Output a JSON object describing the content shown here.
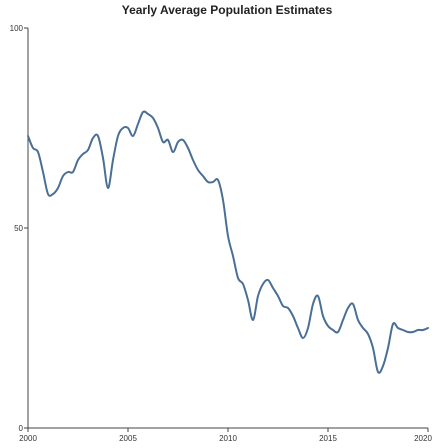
{
  "chart_data": {
    "type": "line",
    "title": "Yearly Average Population Estimates",
    "xlabel": "",
    "ylabel": "",
    "xlim": [
      2000,
      2020
    ],
    "ylim": [
      0,
      100
    ],
    "x_ticks": [
      {
        "value": 2000,
        "label": "2000"
      },
      {
        "value": 2005,
        "label": "2005"
      },
      {
        "value": 2010,
        "label": "2010"
      },
      {
        "value": 2015,
        "label": "2015"
      },
      {
        "value": 2020,
        "label": "2020"
      }
    ],
    "y_ticks": [
      {
        "value": 0,
        "label": "0"
      },
      {
        "value": 50,
        "label": "50"
      },
      {
        "value": 100,
        "label": "100"
      }
    ],
    "grid": false,
    "colors": {
      "series": "#4a6f96",
      "axis": "#444444"
    },
    "series": [
      {
        "x": [
          2000,
          2000.25,
          2000.5,
          2000.75,
          2001,
          2001.25,
          2001.5,
          2001.75,
          2002,
          2002.25,
          2002.5,
          2002.75,
          2003,
          2003.25,
          2003.5,
          2003.75,
          2004,
          2004.25,
          2004.5,
          2004.75,
          2005,
          2005.25,
          2005.5,
          2005.75,
          2006,
          2006.25,
          2006.5,
          2006.75,
          2007,
          2007.25,
          2007.5,
          2007.75,
          2008,
          2008.25,
          2008.5,
          2008.75,
          2009,
          2009.25,
          2009.5,
          2009.75,
          2010,
          2010.25,
          2010.5,
          2010.75,
          2011,
          2011.25,
          2011.5,
          2011.75,
          2012,
          2012.25,
          2012.5,
          2012.75,
          2013,
          2013.25,
          2013.5,
          2013.75,
          2014,
          2014.25,
          2014.5,
          2014.75,
          2015,
          2015.25,
          2015.5,
          2015.75,
          2016,
          2016.25,
          2016.5,
          2016.75,
          2017,
          2017.25,
          2017.5,
          2017.75,
          2018,
          2018.25,
          2018.5,
          2018.75,
          2019,
          2019.25,
          2019.5,
          2019.75,
          2020
        ],
        "values": [
          73,
          70,
          69,
          64,
          58.5,
          58.5,
          60,
          63,
          64,
          64,
          67,
          68.5,
          69.5,
          72.5,
          73,
          67.5,
          60,
          67,
          73,
          75,
          75,
          73,
          76,
          79,
          78.5,
          77.5,
          75,
          71.5,
          72,
          69,
          71.5,
          72,
          70,
          67,
          64.5,
          63,
          61.5,
          61.5,
          62,
          57,
          48,
          43,
          37.5,
          36,
          32,
          27,
          33,
          36,
          37,
          35,
          33,
          30.5,
          30,
          28,
          25,
          22.5,
          25,
          31,
          33,
          28,
          25.5,
          24.5,
          24,
          27,
          30,
          31,
          27,
          25,
          23.5,
          20,
          14,
          15.5,
          20,
          26,
          25,
          24.5,
          24,
          24,
          24.5,
          24.5,
          25
        ]
      }
    ]
  }
}
